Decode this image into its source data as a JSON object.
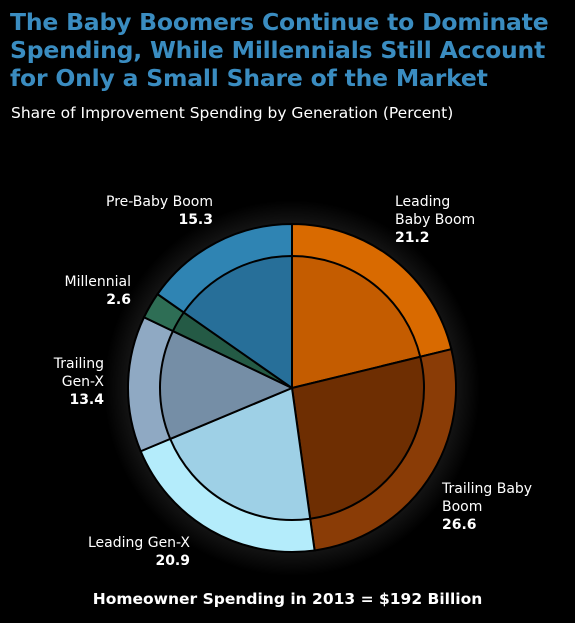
{
  "header": {
    "title_lines": [
      "The Baby Boomers Continue to Dominate",
      "Spending, While Millennials Still Account",
      "for Only a Small Share of the Market"
    ],
    "subtitle": "Share of Improvement Spending by Generation (Percent)"
  },
  "footer": {
    "text": "Homeowner Spending in 2013 = $192 Billion"
  },
  "colors": {
    "title": "#3a8cc0",
    "background": "#000000",
    "label_text": "#ffffff"
  },
  "chart_data": {
    "type": "pie",
    "title": "Share of Improvement Spending by Generation (Percent)",
    "start_angle_deg": 0,
    "direction": "clockwise",
    "slices": [
      {
        "label_lines": [
          "Leading",
          "Baby Boom"
        ],
        "value": 21.2,
        "color": "#d96a00",
        "inner_color": "#c45c00"
      },
      {
        "label_lines": [
          "Trailing Baby",
          "Boom"
        ],
        "value": 26.6,
        "color": "#8a3c06",
        "inner_color": "#6e2e02"
      },
      {
        "label_lines": [
          "Leading Gen-X"
        ],
        "value": 20.9,
        "color": "#b4ecfb",
        "inner_color": "#9ed0e6"
      },
      {
        "label_lines": [
          "Trailing",
          "Gen-X"
        ],
        "value": 13.4,
        "color": "#8fa9c3",
        "inner_color": "#758ea6"
      },
      {
        "label_lines": [
          "Millennial"
        ],
        "value": 2.6,
        "color": "#2e6e55",
        "inner_color": "#245a45"
      },
      {
        "label_lines": [
          "Pre-Baby Boom"
        ],
        "value": 15.3,
        "color": "#2f84b3",
        "inner_color": "#276f99"
      }
    ]
  }
}
